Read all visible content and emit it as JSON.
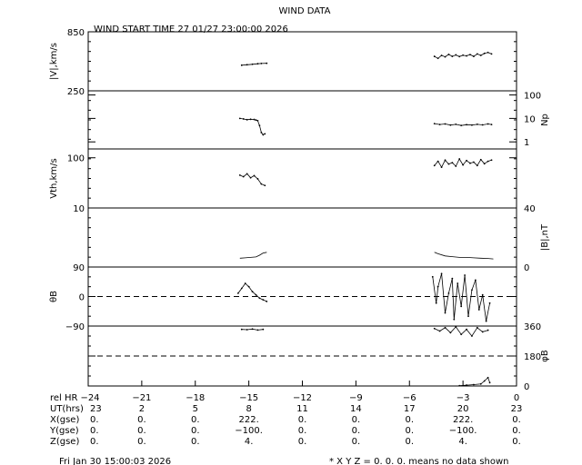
{
  "title": "WIND DATA",
  "start_time": "WIND START TIME  27 01/27 23:00:00 2026",
  "footer_left": "Fri Jan 30 15:00:03 2026",
  "footer_right": "* X Y Z = 0. 0. 0. means no data shown",
  "chart_data": [
    {
      "type": "scatter",
      "name": "speed",
      "ylabel": "|V|,km/s",
      "ylabel_side": "left",
      "ylim": [
        250,
        850
      ],
      "yscale": "linear",
      "yticks": [
        {
          "v": 850,
          "label": "850"
        },
        {
          "v": 250,
          "label": "250"
        }
      ],
      "segments": [
        {
          "x": [
            -15.4,
            -15.1,
            -14.8,
            -14.5,
            -14.3,
            -14.0
          ],
          "y": [
            510,
            515,
            520,
            525,
            528,
            530
          ]
        },
        {
          "x": [
            -4.6,
            -4.4,
            -4.2,
            -4.0,
            -3.8,
            -3.6,
            -3.4,
            -3.2,
            -3.0,
            -2.8,
            -2.6,
            -2.4,
            -2.2,
            -2.0,
            -1.8,
            -1.6,
            -1.4
          ],
          "y": [
            600,
            580,
            610,
            595,
            620,
            600,
            615,
            598,
            612,
            605,
            618,
            600,
            625,
            610,
            630,
            640,
            625
          ]
        }
      ]
    },
    {
      "type": "scatter",
      "name": "density",
      "ylabel": "Np",
      "ylabel_side": "right",
      "ylim": [
        0.5,
        150
      ],
      "yscale": "log",
      "yticks": [
        {
          "v": 100,
          "label": "100"
        },
        {
          "v": 10,
          "label": "10"
        },
        {
          "v": 1,
          "label": "1"
        }
      ],
      "segments": [
        {
          "x": [
            -15.5,
            -15.3,
            -15.1,
            -14.9,
            -14.7,
            -14.6,
            -14.5,
            -14.4,
            -14.3,
            -14.2,
            -14.1
          ],
          "y": [
            10,
            9.5,
            8.8,
            9.2,
            9.0,
            8.5,
            8.0,
            5.0,
            2.5,
            2.0,
            2.2
          ]
        },
        {
          "x": [
            -4.6,
            -4.3,
            -4.0,
            -3.7,
            -3.4,
            -3.1,
            -2.8,
            -2.5,
            -2.2,
            -1.9,
            -1.6,
            -1.4
          ],
          "y": [
            6.0,
            5.5,
            5.8,
            5.2,
            5.6,
            5.0,
            5.4,
            5.2,
            5.6,
            5.3,
            5.8,
            5.5
          ]
        }
      ]
    },
    {
      "type": "scatter",
      "name": "thermal",
      "ylabel": "Vth,km/s",
      "ylabel_side": "left",
      "ylim": [
        10,
        150
      ],
      "yscale": "log",
      "yticks": [
        {
          "v": 100,
          "label": "100"
        },
        {
          "v": 10,
          "label": "10"
        }
      ],
      "segments": [
        {
          "x": [
            -15.5,
            -15.3,
            -15.1,
            -14.9,
            -14.7,
            -14.5,
            -14.3,
            -14.1
          ],
          "y": [
            45,
            42,
            48,
            40,
            44,
            38,
            30,
            28
          ]
        },
        {
          "x": [
            -4.6,
            -4.4,
            -4.2,
            -4.0,
            -3.8,
            -3.6,
            -3.4,
            -3.2,
            -3.0,
            -2.8,
            -2.6,
            -2.4,
            -2.2,
            -2.0,
            -1.8,
            -1.6,
            -1.4
          ],
          "y": [
            70,
            85,
            65,
            90,
            75,
            80,
            68,
            95,
            72,
            88,
            78,
            82,
            70,
            92,
            76,
            85,
            90
          ]
        }
      ]
    },
    {
      "type": "line",
      "name": "field",
      "ylabel": "|B|,nT",
      "ylabel_side": "right",
      "ylim": [
        0,
        40
      ],
      "yscale": "linear",
      "yticks": [
        {
          "v": 40,
          "label": "40"
        },
        {
          "v": 0,
          "label": "0"
        }
      ],
      "segments": [
        {
          "x": [
            -15.5,
            -15.2,
            -14.9,
            -14.6,
            -14.4,
            -14.2,
            -14.0
          ],
          "y": [
            6.0,
            6.2,
            6.5,
            6.8,
            8.0,
            9.5,
            10.0
          ]
        },
        {
          "x": [
            -4.6,
            -4.4,
            -4.0,
            -3.6,
            -3.2,
            -2.8,
            -2.4,
            -2.0,
            -1.6,
            -1.3
          ],
          "y": [
            10.0,
            9.0,
            7.5,
            7.0,
            6.5,
            6.5,
            6.2,
            6.0,
            5.8,
            5.5
          ]
        }
      ]
    },
    {
      "type": "scatter",
      "name": "theta",
      "ylabel": "θB",
      "ylabel_side": "left",
      "ylim": [
        -90,
        90
      ],
      "yscale": "linear",
      "yticks": [
        {
          "v": 90,
          "label": "90"
        },
        {
          "v": 0,
          "label": "0"
        },
        {
          "v": -90,
          "label": "−90"
        }
      ],
      "dashed_ref": 0,
      "segments": [
        {
          "x": [
            -15.6,
            -15.4,
            -15.2,
            -15.0,
            -14.8,
            -14.6,
            -14.4,
            -14.2,
            -14.0
          ],
          "y": [
            10,
            25,
            40,
            30,
            15,
            5,
            -5,
            -10,
            -15
          ]
        },
        {
          "x": [
            -4.7,
            -4.5,
            -4.4,
            -4.2,
            -4.0,
            -3.8,
            -3.6,
            -3.5,
            -3.3,
            -3.1,
            -2.9,
            -2.7,
            -2.5,
            -2.3,
            -2.1,
            -1.9,
            -1.7,
            -1.5
          ],
          "y": [
            60,
            -20,
            30,
            70,
            -50,
            10,
            55,
            -70,
            40,
            -30,
            65,
            -60,
            20,
            50,
            -40,
            5,
            -75,
            -20
          ]
        }
      ]
    },
    {
      "type": "scatter",
      "name": "phi",
      "ylabel": "φB",
      "ylabel_side": "right",
      "ylim": [
        0,
        360
      ],
      "yscale": "linear",
      "yticks": [
        {
          "v": 360,
          "label": "360"
        },
        {
          "v": 180,
          "label": "180"
        },
        {
          "v": 0,
          "label": "0"
        }
      ],
      "dashed_ref": 180,
      "segments": [
        {
          "x": [
            -15.4,
            -15.1,
            -14.8,
            -14.5,
            -14.2
          ],
          "y": [
            340,
            338,
            342,
            336,
            340
          ]
        },
        {
          "x": [
            -4.6,
            -4.3,
            -4.0,
            -3.7,
            -3.4,
            -3.1,
            -2.8,
            -2.5,
            -2.2,
            -1.9,
            -1.6
          ],
          "y": [
            345,
            330,
            350,
            320,
            355,
            310,
            340,
            300,
            350,
            325,
            335
          ]
        },
        {
          "x": [
            -3.2,
            -2.8,
            -2.4,
            -2.0,
            -1.8,
            -1.6,
            -1.5
          ],
          "y": [
            2,
            5,
            8,
            12,
            30,
            50,
            20
          ]
        }
      ]
    }
  ],
  "x_axis": {
    "range": [
      -24,
      0
    ],
    "ticks": [
      -24,
      -21,
      -18,
      -15,
      -12,
      -9,
      -6,
      -3,
      0
    ]
  },
  "footer_rows": [
    {
      "label": "rel HR",
      "values": [
        "−24",
        "−21",
        "−18",
        "−15",
        "−12",
        "−9",
        "−6",
        "−3",
        "0"
      ]
    },
    {
      "label": "UT(hrs)",
      "values": [
        "23",
        "2",
        "5",
        "8",
        "11",
        "14",
        "17",
        "20",
        "23"
      ]
    },
    {
      "label": "X(gse)",
      "values": [
        "0.",
        "0.",
        "0.",
        "222.",
        "0.",
        "0.",
        "0.",
        "222.",
        "0."
      ]
    },
    {
      "label": "Y(gse)",
      "values": [
        "0.",
        "0.",
        "0.",
        "−100.",
        "0.",
        "0.",
        "0.",
        "−100.",
        "0."
      ]
    },
    {
      "label": "Z(gse)",
      "values": [
        "0.",
        "0.",
        "0.",
        "4.",
        "0.",
        "0.",
        "0.",
        "4.",
        "0."
      ]
    }
  ]
}
